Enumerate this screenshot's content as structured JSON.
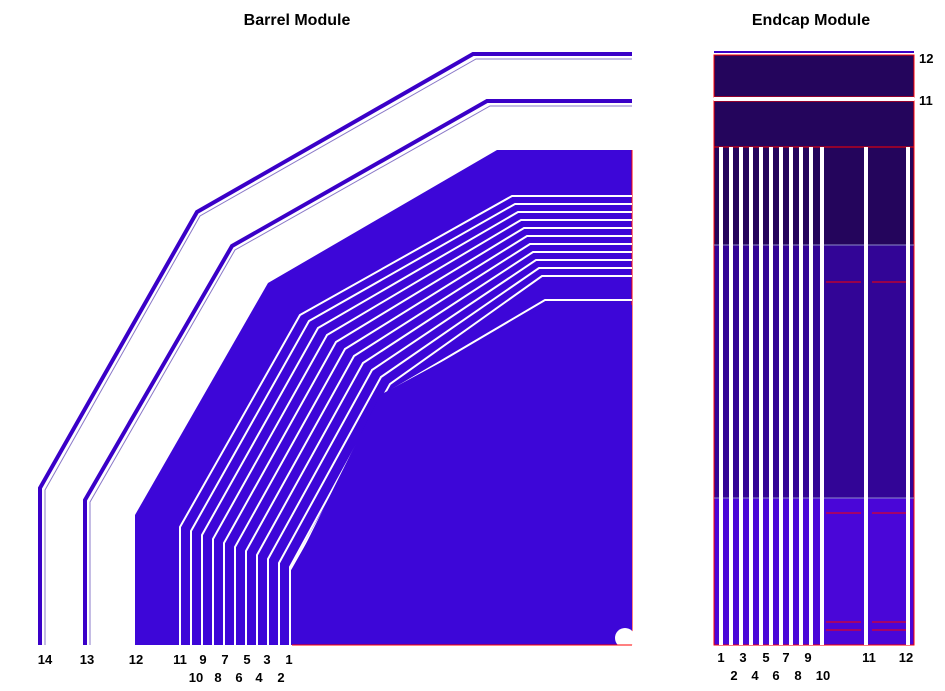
{
  "titles": {
    "barrel": "Barrel Module",
    "endcap": "Endcap Module"
  },
  "barrel": {
    "bottom_labels_row1": [
      "14",
      "13",
      "12",
      "11",
      "9",
      "7",
      "5",
      "3",
      "1"
    ],
    "bottom_labels_row2": [
      "10",
      "8",
      "6",
      "4",
      "2"
    ]
  },
  "endcap": {
    "right_labels": [
      "12",
      "11"
    ],
    "bottom_labels_row1": [
      "1",
      "3",
      "5",
      "7",
      "9",
      "11",
      "12"
    ],
    "bottom_labels_row2": [
      "2",
      "4",
      "6",
      "8",
      "10"
    ]
  },
  "colors": {
    "blue": "#3d06d8",
    "navy": "#24055c",
    "purple": "#320596",
    "violet": "#4a06d8",
    "outline": "#3a00c8",
    "red": "#ff0000",
    "white": "#ffffff"
  }
}
